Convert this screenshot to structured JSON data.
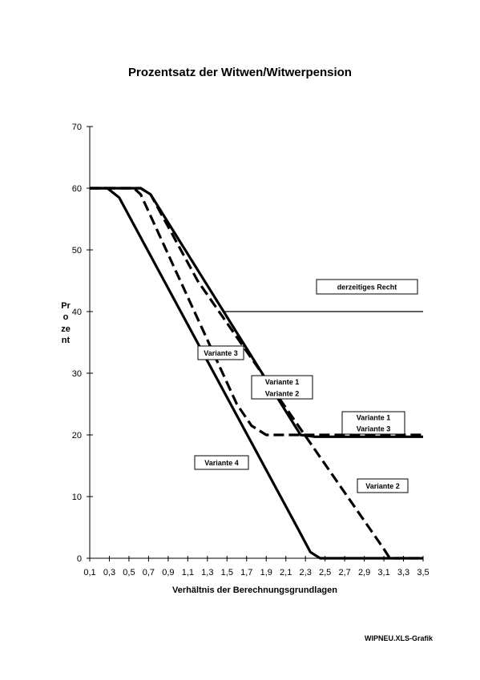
{
  "page": {
    "title": "Prozentsatz der Witwen/Witwerpension",
    "footer": "WIPNEU.XLS-Grafik"
  },
  "chart_data": {
    "type": "line",
    "title": "Prozentsatz der Witwen/Witwerpension",
    "xlabel": "Verhältnis der Berechnungsgrundlagen",
    "ylabel": "Prozent",
    "xlim": [
      0.1,
      3.5
    ],
    "ylim": [
      0,
      70
    ],
    "x_ticks": [
      "0,1",
      "0,3",
      "0,5",
      "0,7",
      "0,9",
      "1,1",
      "1,3",
      "1,5",
      "1,7",
      "1,9",
      "2,1",
      "2,3",
      "2,5",
      "2,7",
      "2,9",
      "3,1",
      "3,3",
      "3,5"
    ],
    "y_ticks": [
      "0",
      "10",
      "20",
      "30",
      "40",
      "50",
      "60",
      "70"
    ],
    "grid": false,
    "series": [
      {
        "label": "derzeitiges Recht",
        "style": "thin",
        "x": [
          1.45,
          3.5
        ],
        "y": [
          40,
          40
        ]
      },
      {
        "label": "Variante 1 / Variante 3",
        "style": "dashed",
        "x": [
          0.1,
          0.55,
          0.62,
          1.6,
          1.75,
          1.9,
          3.5
        ],
        "y": [
          60,
          60,
          59,
          25,
          21.5,
          20,
          20
        ]
      },
      {
        "label": "Variante 2",
        "style": "dashed",
        "x": [
          0.1,
          0.62,
          0.72,
          1.2,
          3.1,
          3.16,
          3.5
        ],
        "y": [
          60,
          60,
          59,
          45,
          1.5,
          0,
          0
        ]
      },
      {
        "label": "Variante 4",
        "style": "solid",
        "x": [
          0.1,
          0.28,
          0.4,
          2.25,
          2.35,
          2.45,
          3.5
        ],
        "y": [
          60,
          60,
          58.5,
          4,
          1,
          0,
          0
        ]
      },
      {
        "label": "Variante 1 / Variante 2",
        "style": "solid",
        "x": [
          0.1,
          0.62,
          0.72,
          2.25,
          2.4,
          3.5
        ],
        "y": [
          60,
          60,
          59,
          20,
          19.7,
          19.7
        ]
      }
    ],
    "annotations": [
      {
        "lines": [
          "derzeitiges Recht"
        ]
      },
      {
        "lines": [
          "Variante 3"
        ]
      },
      {
        "lines": [
          "Variante 1",
          "Variante 2"
        ]
      },
      {
        "lines": [
          "Variante 1",
          "Variante 3"
        ]
      },
      {
        "lines": [
          "Variante 4"
        ]
      },
      {
        "lines": [
          "Variante 2"
        ]
      }
    ]
  }
}
